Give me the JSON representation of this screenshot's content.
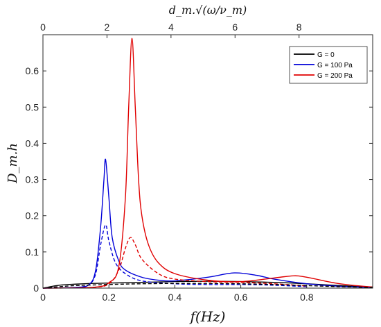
{
  "chart_data": {
    "type": "line",
    "xlabel": "f(Hz)",
    "ylabel": "D_m.h",
    "top_xlabel": "d_m.√(ω/ν_m)",
    "xlim": [
      0,
      1.0
    ],
    "ylim": [
      0,
      0.7
    ],
    "top_xlim": [
      0,
      10.3
    ],
    "x_ticks": [
      0,
      0.2,
      0.4,
      0.6,
      0.8
    ],
    "x_tick_labels": [
      "0",
      "0.2",
      "0.4",
      "0.6",
      "0.8"
    ],
    "y_ticks": [
      0,
      0.1,
      0.2,
      0.3,
      0.4,
      0.5,
      0.6
    ],
    "y_tick_labels": [
      "0",
      "0.1",
      "0.2",
      "0.3",
      "0.4",
      "0.5",
      "0.6"
    ],
    "top_ticks": [
      0,
      2,
      4,
      6,
      8
    ],
    "top_tick_labels": [
      "0",
      "2",
      "4",
      "6",
      "8"
    ],
    "grid": false,
    "legend_position": "top-right",
    "series": [
      {
        "name": "G = 0",
        "color": "#000000",
        "style": "solid",
        "x": [
          0,
          0.05,
          0.1,
          0.15,
          0.2,
          0.3,
          0.4,
          0.5,
          0.6,
          0.7,
          0.8,
          0.9,
          1.0
        ],
        "y": [
          0,
          0.008,
          0.011,
          0.013,
          0.014,
          0.016,
          0.018,
          0.019,
          0.018,
          0.016,
          0.012,
          0.007,
          0.003
        ]
      },
      {
        "name": "G = 100 Pa",
        "color": "#0000d8",
        "style": "solid",
        "x": [
          0,
          0.1,
          0.14,
          0.16,
          0.175,
          0.185,
          0.19,
          0.2,
          0.21,
          0.23,
          0.25,
          0.3,
          0.35,
          0.4,
          0.5,
          0.58,
          0.65,
          0.7,
          0.8,
          0.9,
          1.0
        ],
        "y": [
          0,
          0.002,
          0.01,
          0.05,
          0.17,
          0.3,
          0.355,
          0.25,
          0.14,
          0.075,
          0.05,
          0.03,
          0.022,
          0.02,
          0.03,
          0.042,
          0.035,
          0.025,
          0.012,
          0.005,
          0.002
        ]
      },
      {
        "name": "G = 200 Pa",
        "color": "#e00000",
        "style": "solid",
        "x": [
          0,
          0.15,
          0.2,
          0.23,
          0.25,
          0.26,
          0.27,
          0.28,
          0.29,
          0.3,
          0.32,
          0.35,
          0.4,
          0.5,
          0.6,
          0.7,
          0.76,
          0.8,
          0.9,
          1.0
        ],
        "y": [
          0,
          0.002,
          0.015,
          0.06,
          0.25,
          0.5,
          0.69,
          0.5,
          0.3,
          0.2,
          0.12,
          0.07,
          0.04,
          0.022,
          0.018,
          0.028,
          0.034,
          0.03,
          0.012,
          0.003
        ]
      },
      {
        "color": "#0000d8",
        "style": "dashed",
        "x": [
          0,
          0.1,
          0.14,
          0.16,
          0.175,
          0.19,
          0.2,
          0.22,
          0.25,
          0.3,
          0.4,
          0.5,
          0.6,
          0.7,
          0.8
        ],
        "y": [
          0,
          0.002,
          0.01,
          0.04,
          0.12,
          0.175,
          0.13,
          0.07,
          0.04,
          0.02,
          0.012,
          0.01,
          0.01,
          0.008,
          0.004
        ]
      },
      {
        "color": "#e00000",
        "style": "dashed",
        "x": [
          0,
          0.15,
          0.2,
          0.23,
          0.25,
          0.265,
          0.28,
          0.3,
          0.35,
          0.4,
          0.5,
          0.6,
          0.7,
          0.8
        ],
        "y": [
          0,
          0.002,
          0.012,
          0.05,
          0.11,
          0.14,
          0.12,
          0.08,
          0.04,
          0.025,
          0.018,
          0.016,
          0.012,
          0.006
        ]
      },
      {
        "color": "#000000",
        "style": "dashed",
        "x": [
          0,
          0.05,
          0.1,
          0.2,
          0.3,
          0.4,
          0.5,
          0.6,
          0.7,
          0.8,
          0.9,
          1.0
        ],
        "y": [
          0,
          0.004,
          0.007,
          0.01,
          0.012,
          0.013,
          0.013,
          0.012,
          0.01,
          0.007,
          0.004,
          0.002
        ]
      }
    ]
  }
}
